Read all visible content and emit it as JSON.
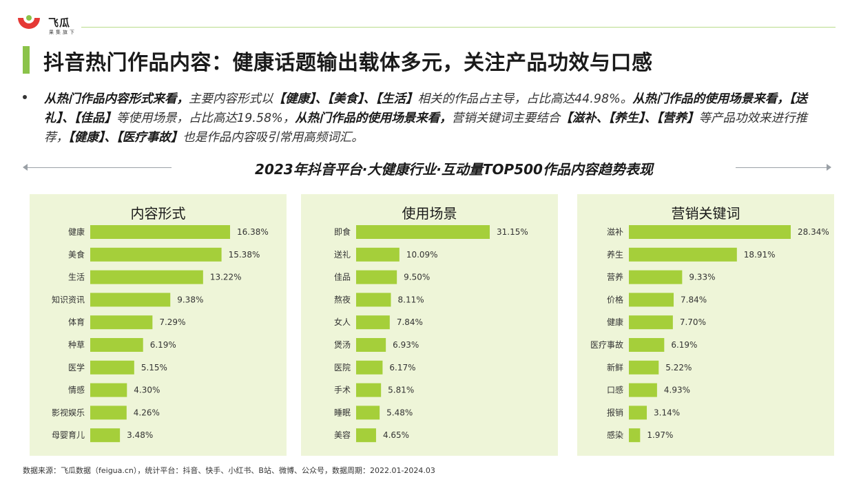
{
  "brand": {
    "name": "飞瓜",
    "tagline": "果集旗下",
    "accent": "#8bc34a",
    "bar_color": "#a5cf3a",
    "logo_red": "#e53935"
  },
  "title": "抖音热门作品内容：健康话题输出载体多元，关注产品功效与口感",
  "summary": [
    {
      "bold": true,
      "text": "从热门作品内容形式来看，"
    },
    {
      "bold": false,
      "text": "主要内容形式以"
    },
    {
      "bold": true,
      "text": "【健康】、【美食】、【生活】"
    },
    {
      "bold": false,
      "text": "相关的作品占主导，占比高达44.98%。"
    },
    {
      "bold": true,
      "text": "从热门作品的使用场景来看，【送礼】、【佳品】"
    },
    {
      "bold": false,
      "text": "等使用场景，占比高达19.58%，"
    },
    {
      "bold": true,
      "text": "从热门作品的使用场景来看，"
    },
    {
      "bold": false,
      "text": "营销关键词主要结合"
    },
    {
      "bold": true,
      "text": "【滋补、【养生】、【营养】"
    },
    {
      "bold": false,
      "text": "等产品功效来进行推荐，"
    },
    {
      "bold": true,
      "text": "【健康】、【医疗事故】"
    },
    {
      "bold": false,
      "text": "也是作品内容吸引常用高频词汇。"
    }
  ],
  "subtitle": "2023年抖音平台·大健康行业·互动量TOP500作品内容趋势表现",
  "chart_data": [
    {
      "type": "bar",
      "orientation": "horizontal",
      "title": "内容形式",
      "categories": [
        "健康",
        "美食",
        "生活",
        "知识资讯",
        "体育",
        "种草",
        "医学",
        "情感",
        "影视娱乐",
        "母婴育儿"
      ],
      "values": [
        16.38,
        15.38,
        13.22,
        9.38,
        7.29,
        6.19,
        5.15,
        4.3,
        4.26,
        3.48
      ],
      "labels": [
        "16.38%",
        "15.38%",
        "13.22%",
        "9.38%",
        "7.29%",
        "6.19%",
        "5.15%",
        "4.30%",
        "4.26%",
        "3.48%"
      ],
      "xlim": [
        0,
        16.38
      ]
    },
    {
      "type": "bar",
      "orientation": "horizontal",
      "title": "使用场景",
      "categories": [
        "即食",
        "送礼",
        "佳品",
        "熬夜",
        "女人",
        "煲汤",
        "医院",
        "手术",
        "睡眠",
        "美容"
      ],
      "values": [
        31.15,
        10.09,
        9.5,
        8.11,
        7.84,
        6.93,
        6.17,
        5.81,
        5.48,
        4.65
      ],
      "labels": [
        "31.15%",
        "10.09%",
        "9.50%",
        "8.11%",
        "7.84%",
        "6.93%",
        "6.17%",
        "5.81%",
        "5.48%",
        "4.65%"
      ],
      "xlim": [
        0,
        31.15
      ]
    },
    {
      "type": "bar",
      "orientation": "horizontal",
      "title": "营销关键词",
      "categories": [
        "滋补",
        "养生",
        "营养",
        "价格",
        "健康",
        "医疗事故",
        "新鲜",
        "口感",
        "报销",
        "感染"
      ],
      "values": [
        28.34,
        18.91,
        9.33,
        7.84,
        7.7,
        6.19,
        5.22,
        4.93,
        3.14,
        1.97
      ],
      "labels": [
        "28.34%",
        "18.91%",
        "9.33%",
        "7.84%",
        "7.70%",
        "6.19%",
        "5.22%",
        "4.93%",
        "3.14%",
        "1.97%"
      ],
      "xlim": [
        0,
        28.34
      ]
    }
  ],
  "footer": "数据来源：飞瓜数据（feigua.cn），统计平台：抖音、快手、小红书、B站、微博、公众号，数据周期：2022.01-2024.03"
}
